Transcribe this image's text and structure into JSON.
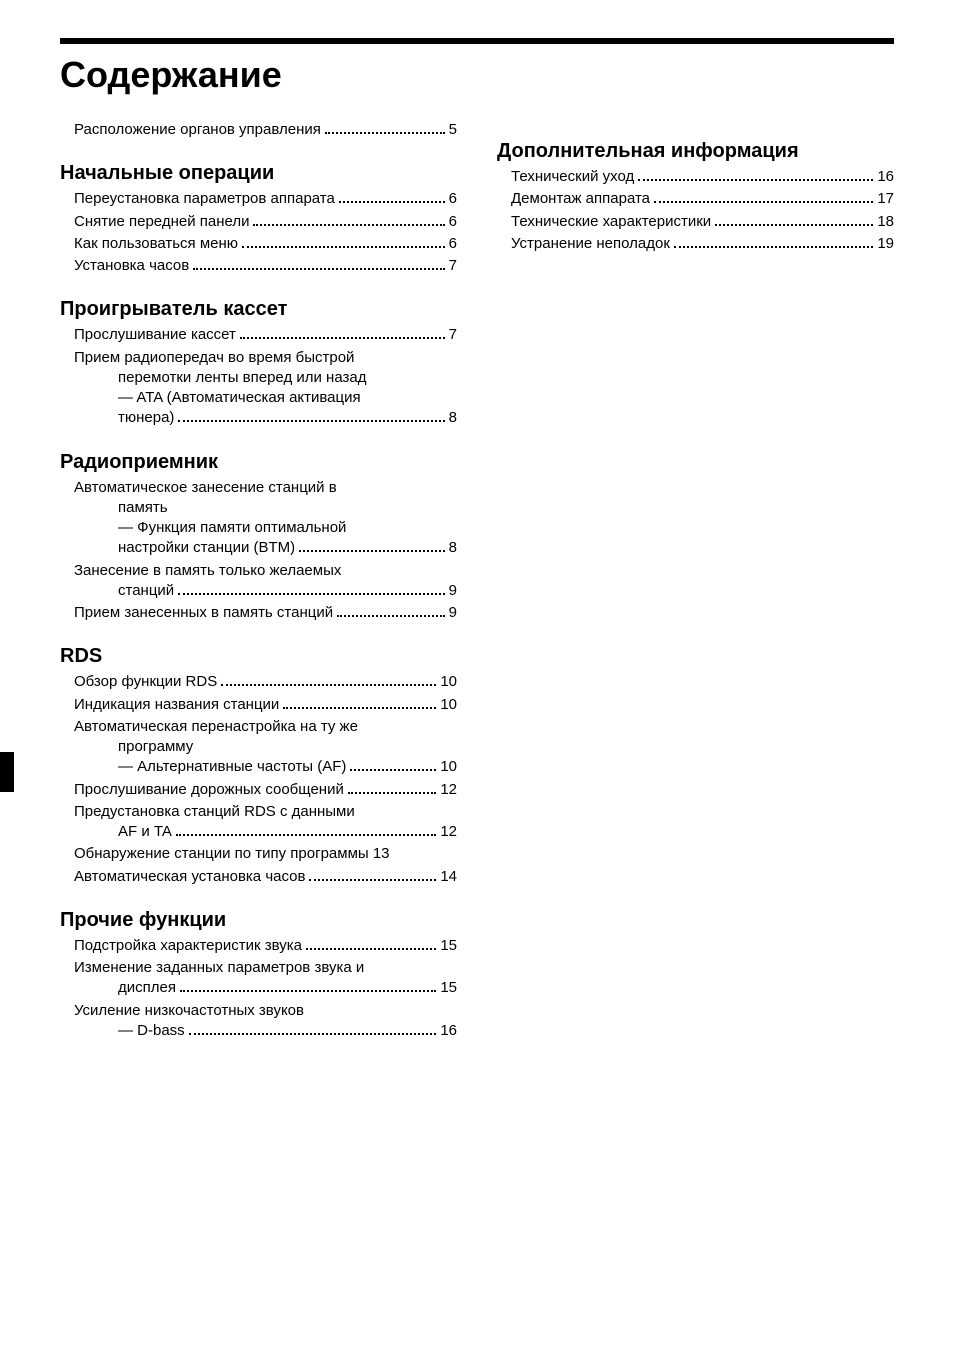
{
  "title": "Содержание",
  "colors": {
    "text": "#000000",
    "background": "#ffffff",
    "rule": "#000000"
  },
  "fonts": {
    "title_size_pt": 27,
    "section_size_pt": 15,
    "body_size_pt": 11
  },
  "left_column": [
    {
      "heading": null,
      "items": [
        {
          "lines": [
            "Расположение органов управления"
          ],
          "page": "5"
        }
      ]
    },
    {
      "heading": "Начальные операции",
      "items": [
        {
          "lines": [
            "Переустановка параметров аппарата"
          ],
          "page": "6"
        },
        {
          "lines": [
            "Снятие передней панели"
          ],
          "page": "6"
        },
        {
          "lines": [
            "Как пользоваться меню"
          ],
          "page": "6"
        },
        {
          "lines": [
            "Установка часов"
          ],
          "page": "7"
        }
      ]
    },
    {
      "heading": "Проигрыватель кассет",
      "items": [
        {
          "lines": [
            "Прослушивание кассет"
          ],
          "page": "7"
        },
        {
          "lines": [
            "Прием радиопередач во время быстрой",
            "перемотки ленты вперед или назад",
            "— ATA (Автоматическая активация",
            "тюнера)"
          ],
          "page": "8"
        }
      ]
    },
    {
      "heading": "Радиоприемник",
      "items": [
        {
          "lines": [
            "Автоматическое занесение станций в",
            "память",
            "— Функция памяти оптимальной",
            "настройки станции (BTM)"
          ],
          "page": "8"
        },
        {
          "lines": [
            "Занесение в память только желаемых",
            "станций"
          ],
          "page": "9"
        },
        {
          "lines": [
            "Прием занесенных в память станций"
          ],
          "page": "9"
        }
      ]
    },
    {
      "heading": "RDS",
      "items": [
        {
          "lines": [
            "Обзор функции RDS"
          ],
          "page": "10"
        },
        {
          "lines": [
            "Индикация названия станции"
          ],
          "page": "10"
        },
        {
          "lines": [
            "Автоматическая перенастройка на ту же",
            "программу",
            "— Альтернативные частоты (AF)"
          ],
          "page": "10"
        },
        {
          "lines": [
            "Прослушивание дорожных сообщений"
          ],
          "page": "12"
        },
        {
          "lines": [
            "Предустановка станций RDS с данными",
            "AF и TA"
          ],
          "page": "12"
        },
        {
          "lines": [
            "Обнаружение станции по типу программы"
          ],
          "page": "13",
          "tight": true
        },
        {
          "lines": [
            "Автоматическая установка часов"
          ],
          "page": "14"
        }
      ]
    },
    {
      "heading": "Прочие функции",
      "items": [
        {
          "lines": [
            "Подстройка характеристик звука"
          ],
          "page": "15"
        },
        {
          "lines": [
            "Изменение заданных параметров звука и",
            "дисплея"
          ],
          "page": "15"
        },
        {
          "lines": [
            "Усиление низкочастотных звуков",
            "— D-bass"
          ],
          "page": "16"
        }
      ]
    }
  ],
  "right_column": [
    {
      "heading": "Дополнительная информация",
      "items": [
        {
          "lines": [
            "Технический уход"
          ],
          "page": "16"
        },
        {
          "lines": [
            "Демонтаж аппарата"
          ],
          "page": "17"
        },
        {
          "lines": [
            "Технические характеристики"
          ],
          "page": "18"
        },
        {
          "lines": [
            "Устранение неполадок"
          ],
          "page": "19"
        }
      ]
    }
  ]
}
